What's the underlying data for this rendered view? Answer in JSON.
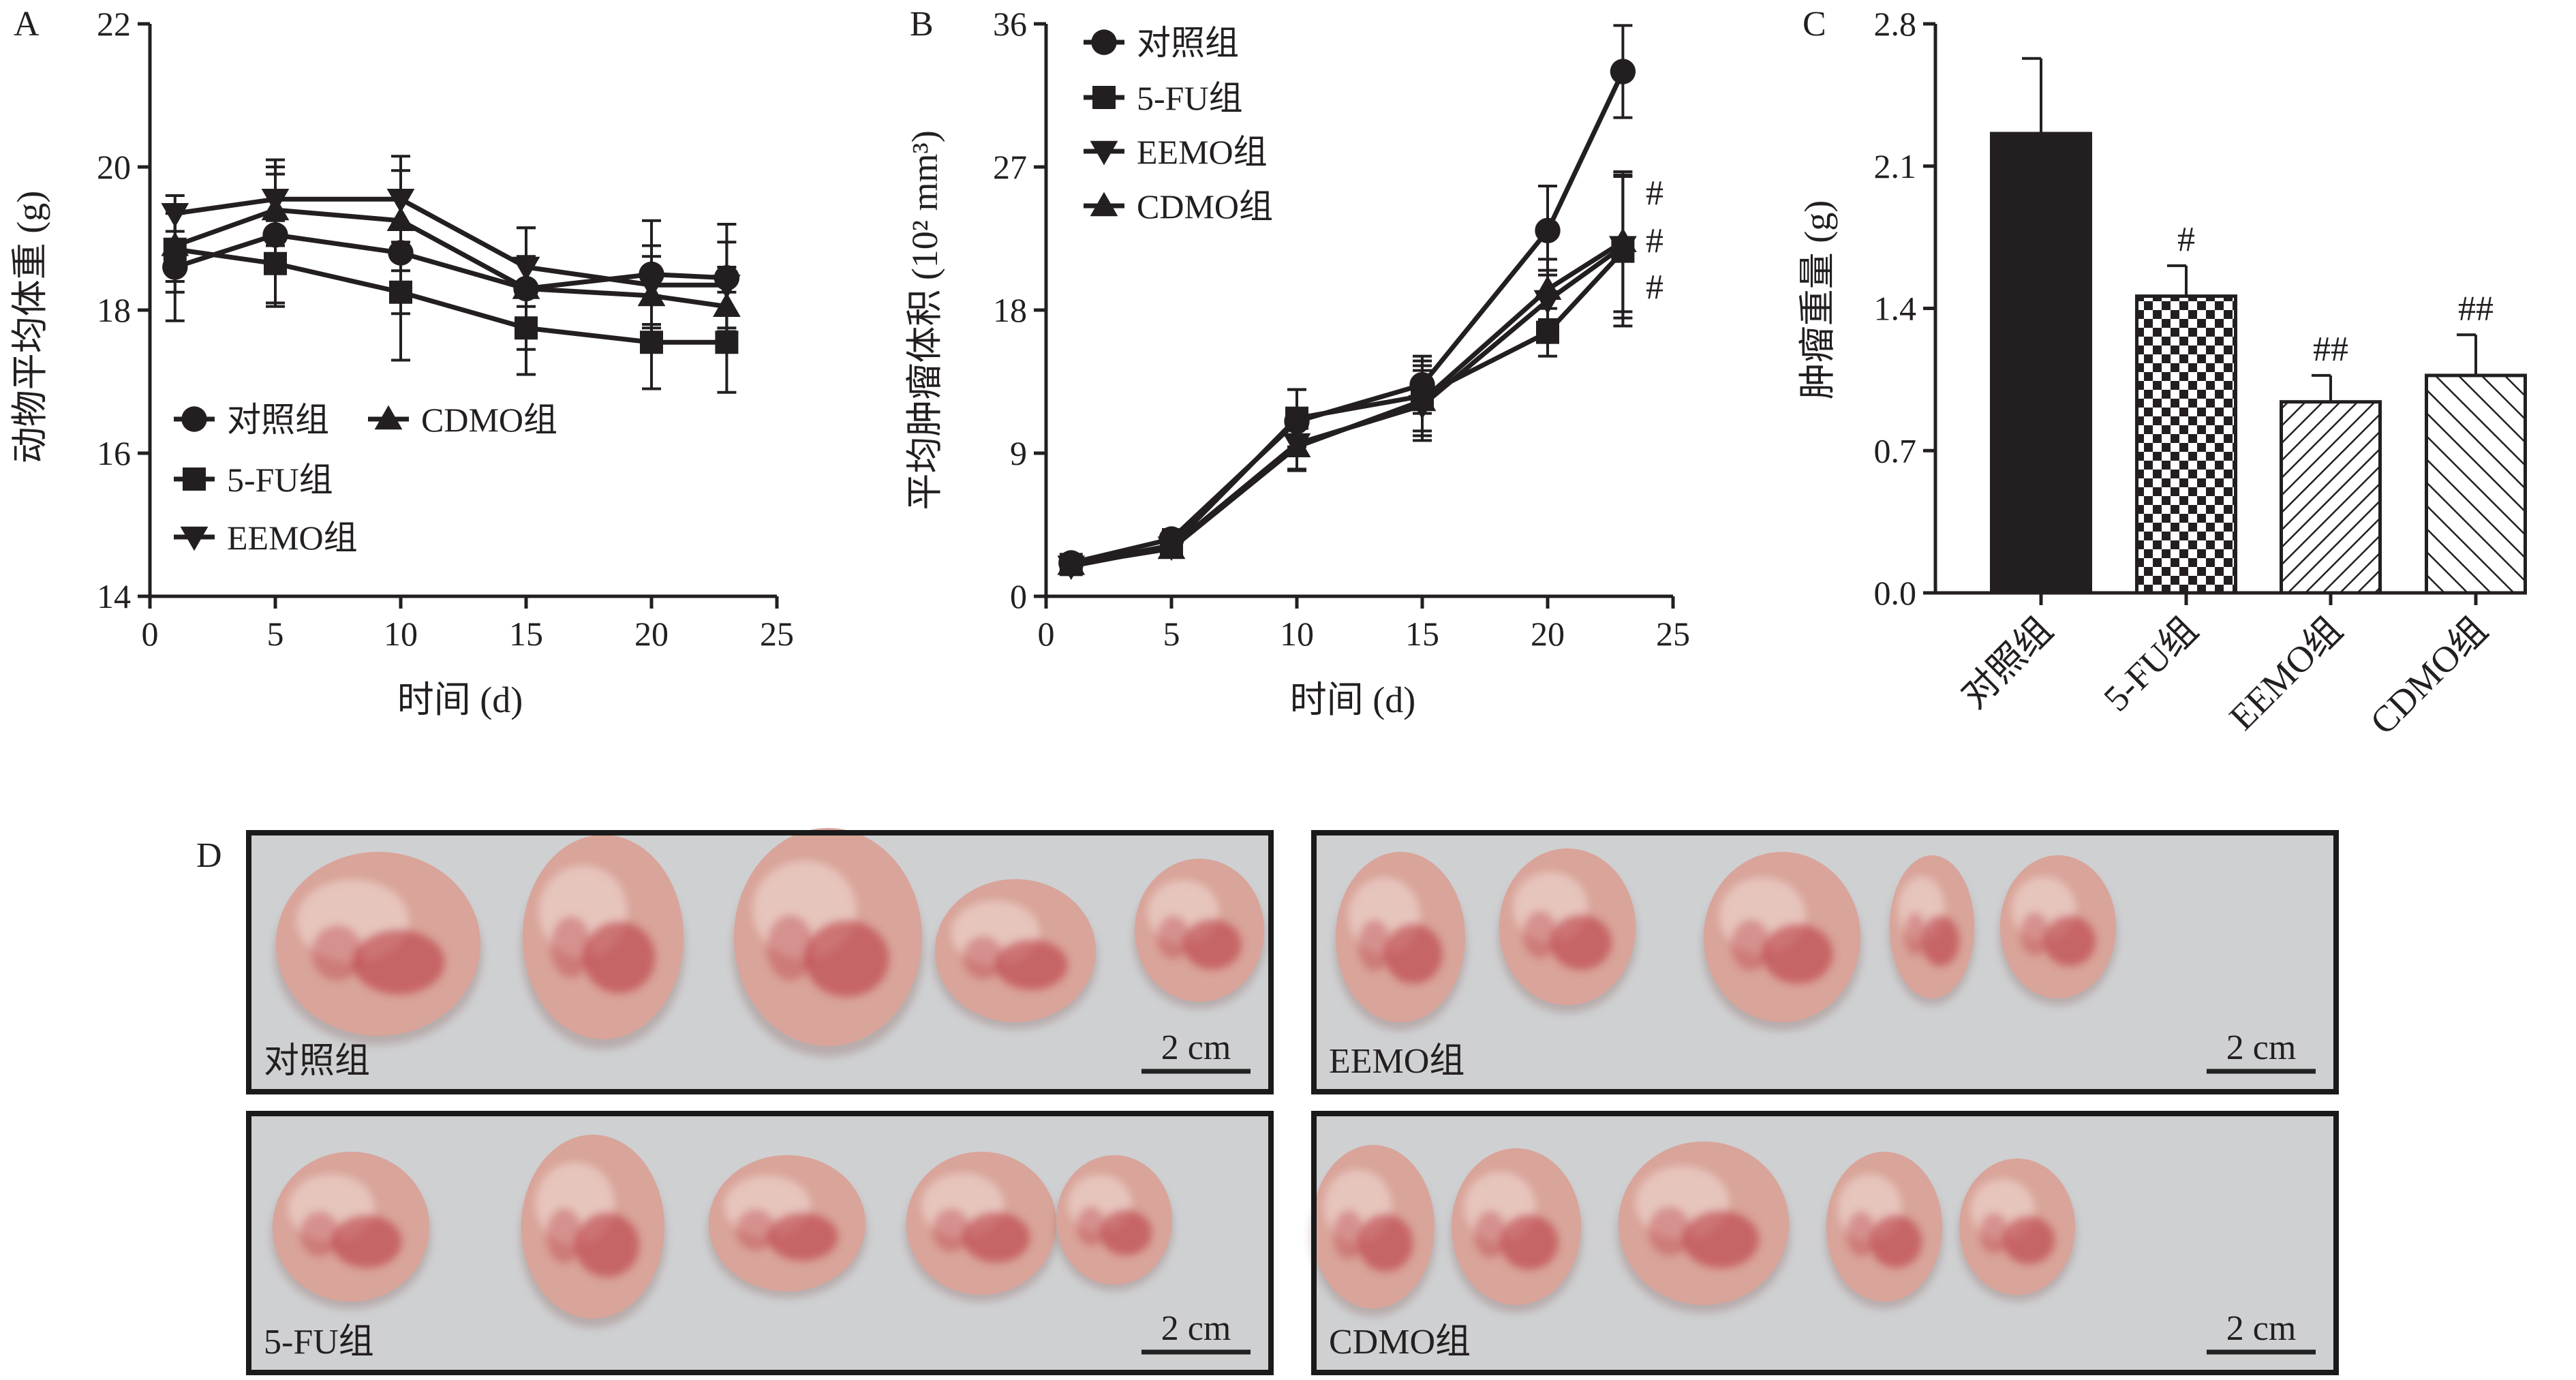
{
  "colors": {
    "ink": "#231f20",
    "photo_bg": "#cfd0d2",
    "tumor_base": "#d9a49a",
    "tumor_blood": "#b8303a"
  },
  "chart_data": [
    {
      "panel": "A",
      "type": "line",
      "xlabel": "时间 (d)",
      "ylabel": "动物平均体重 (g)",
      "xlim": [
        0,
        25
      ],
      "ylim": [
        14,
        22
      ],
      "xticks": [
        0,
        5,
        10,
        15,
        20,
        25
      ],
      "yticks": [
        14,
        16,
        18,
        20,
        22
      ],
      "legend_position": "bottom-left",
      "series": [
        {
          "name": "对照组",
          "marker": "circle",
          "x": [
            1,
            5,
            10,
            15,
            20,
            23
          ],
          "y": [
            18.6,
            19.05,
            18.8,
            18.3,
            18.5,
            18.45
          ],
          "err": [
            0.75,
            0.95,
            0.85,
            0.85,
            0.75,
            0.75
          ]
        },
        {
          "name": "5-FU组",
          "marker": "square",
          "x": [
            1,
            5,
            10,
            15,
            20,
            23
          ],
          "y": [
            18.85,
            18.65,
            18.25,
            17.75,
            17.55,
            17.55
          ],
          "err": [
            0.6,
            0.6,
            0.95,
            0.65,
            0.65,
            0.7
          ]
        },
        {
          "name": "EEMO组",
          "marker": "triangle-down",
          "x": [
            1,
            5,
            10,
            15,
            20,
            23
          ],
          "y": [
            19.35,
            19.55,
            19.55,
            18.6,
            18.35,
            18.35
          ],
          "err": [
            0.25,
            0.55,
            0.6,
            0.55,
            0.55,
            0.6
          ]
        },
        {
          "name": "CDMO组",
          "marker": "triangle-up",
          "x": [
            1,
            5,
            10,
            15,
            20,
            23
          ],
          "y": [
            18.9,
            19.4,
            19.25,
            18.3,
            18.2,
            18.05
          ],
          "err": [
            0.5,
            0.5,
            0.7,
            0.45,
            0.55,
            0.55
          ]
        }
      ]
    },
    {
      "panel": "B",
      "type": "line",
      "xlabel": "时间 (d)",
      "ylabel": "平均肿瘤体积 (10² mm³)",
      "xlim": [
        0,
        25
      ],
      "ylim": [
        0,
        36
      ],
      "xticks": [
        0,
        5,
        10,
        15,
        20,
        25
      ],
      "yticks": [
        0,
        9,
        18,
        27,
        36
      ],
      "legend_position": "top-left",
      "significance_labels": [
        "#",
        "#",
        "#"
      ],
      "series": [
        {
          "name": "对照组",
          "marker": "circle",
          "x": [
            1,
            5,
            10,
            15,
            20,
            23
          ],
          "y": [
            2.1,
            3.6,
            11.0,
            13.3,
            23.0,
            33.0
          ],
          "err": [
            0.5,
            0.6,
            2.0,
            1.8,
            2.8,
            2.9
          ]
        },
        {
          "name": "5-FU组",
          "marker": "square",
          "x": [
            1,
            5,
            10,
            15,
            20,
            23
          ],
          "y": [
            2.0,
            3.2,
            11.2,
            12.6,
            16.6,
            21.7
          ],
          "err": [
            0.4,
            0.6,
            1.8,
            2.2,
            1.5,
            4.7
          ]
        },
        {
          "name": "EEMO组",
          "marker": "triangle-down",
          "x": [
            1,
            5,
            10,
            15,
            20,
            23
          ],
          "y": [
            1.9,
            3.1,
            9.6,
            12.0,
            18.6,
            22.0
          ],
          "err": [
            0.4,
            0.5,
            1.6,
            2.2,
            1.9,
            4.5
          ]
        },
        {
          "name": "CDMO组",
          "marker": "triangle-up",
          "x": [
            1,
            5,
            10,
            15,
            20,
            23
          ],
          "y": [
            2.0,
            3.0,
            9.4,
            12.3,
            19.3,
            22.3
          ],
          "err": [
            0.4,
            0.5,
            1.5,
            2.2,
            1.9,
            4.4
          ]
        }
      ]
    },
    {
      "panel": "C",
      "type": "bar",
      "ylabel": "肿瘤重量 (g)",
      "ylim": [
        0.0,
        2.8
      ],
      "yticks": [
        "0.0",
        "0.7",
        "1.4",
        "2.1",
        "2.8"
      ],
      "categories": [
        "对照组",
        "5-FU组",
        "EEMO组",
        "CDMO组"
      ],
      "values": [
        2.26,
        1.46,
        0.94,
        1.07
      ],
      "err": [
        0.37,
        0.15,
        0.13,
        0.2
      ],
      "fills": [
        "solid",
        "checker",
        "hatch-fine",
        "hatch-wide"
      ],
      "significance_labels": [
        "",
        "#",
        "##",
        "##"
      ]
    }
  ],
  "panel_d": {
    "panel_label": "D",
    "groups": [
      {
        "label": "对照组",
        "scale_label": "2 cm"
      },
      {
        "label": "EEMO组",
        "scale_label": "2 cm"
      },
      {
        "label": "5-FU组",
        "scale_label": "2 cm"
      },
      {
        "label": "CDMO组",
        "scale_label": "2 cm"
      }
    ]
  }
}
